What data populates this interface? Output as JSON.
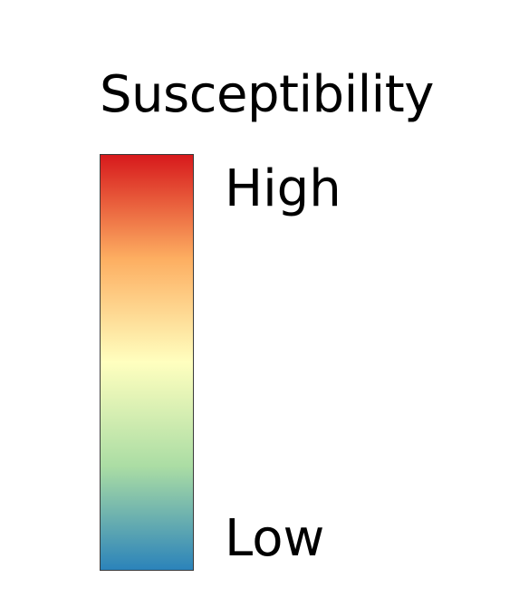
{
  "legend": {
    "title": "Susceptibility",
    "high_label": "High",
    "low_label": "Low",
    "ramp_colors": [
      "#d7191c",
      "#fdae61",
      "#ffffbf",
      "#abdda4",
      "#2b83ba"
    ]
  }
}
